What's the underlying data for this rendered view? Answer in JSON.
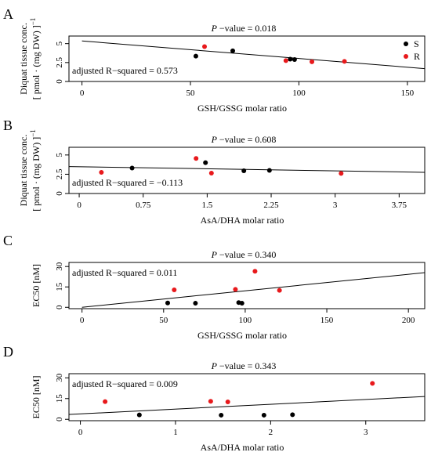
{
  "chart_data": [
    {
      "type": "scatter",
      "panel": "A",
      "pvalue_text": "−value = 0.018",
      "pvalue_italic": "P",
      "annotation": "adjusted R−squared = 0.573",
      "xlabel": "GSH/GSSG molar ratio",
      "ylabel_line1": "Diquat tissue conc.",
      "ylabel_line2": "[ pmol · (mg DW) ]",
      "ylabel_exp": "−1",
      "xlim": [
        -6,
        158
      ],
      "ylim": [
        0,
        6
      ],
      "xticks": [
        0,
        50,
        100,
        150
      ],
      "xtick_labels": [
        "0",
        "50",
        "100",
        "150"
      ],
      "yticks": [
        0,
        2.5,
        5
      ],
      "ytick_labels": [
        "0",
        "2.5",
        "5"
      ],
      "legend": [
        {
          "label": "S",
          "color": "#000000"
        },
        {
          "label": "R",
          "color": "#e8191c"
        }
      ],
      "regression": {
        "x0": 0,
        "y0": 5.35,
        "x1": 158,
        "y1": 1.7
      },
      "series": [
        {
          "name": "S",
          "color": "#000000",
          "points": [
            [
              52.5,
              3.35
            ],
            [
              69.5,
              4.05
            ],
            [
              96,
              2.95
            ],
            [
              98,
              2.9
            ]
          ]
        },
        {
          "name": "R",
          "color": "#e8191c",
          "points": [
            [
              56.5,
              4.6
            ],
            [
              94,
              2.75
            ],
            [
              106,
              2.6
            ],
            [
              121,
              2.65
            ]
          ]
        }
      ]
    },
    {
      "type": "scatter",
      "panel": "B",
      "pvalue_text": "−value = 0.608",
      "pvalue_italic": "P",
      "annotation": "adjusted R−squared = −0.113",
      "xlabel": "AsA/DHA molar ratio",
      "ylabel_line1": "Diquat tissue conc.",
      "ylabel_line2": "[ pmol · (mg DW) ]",
      "ylabel_exp": "−1",
      "xlim": [
        -0.12,
        4.05
      ],
      "ylim": [
        0,
        6
      ],
      "xticks": [
        0,
        0.75,
        1.5,
        2.25,
        3,
        3.75
      ],
      "xtick_labels": [
        "0",
        "0.75",
        "1.5",
        "2.25",
        "3",
        "3.75"
      ],
      "yticks": [
        0,
        2.5,
        5
      ],
      "ytick_labels": [
        "0",
        "2.5",
        "5"
      ],
      "regression": {
        "x0": -0.12,
        "y0": 3.5,
        "x1": 4.05,
        "y1": 2.75
      },
      "series": [
        {
          "name": "S",
          "color": "#000000",
          "points": [
            [
              0.62,
              3.3
            ],
            [
              1.48,
              4.0
            ],
            [
              1.93,
              2.95
            ],
            [
              2.23,
              3.0
            ]
          ]
        },
        {
          "name": "R",
          "color": "#e8191c",
          "points": [
            [
              0.26,
              2.75
            ],
            [
              1.37,
              4.55
            ],
            [
              1.55,
              2.65
            ],
            [
              3.07,
              2.6
            ]
          ]
        }
      ]
    },
    {
      "type": "scatter",
      "panel": "C",
      "pvalue_text": "−value = 0.340",
      "pvalue_italic": "P",
      "annotation": "adjusted R−squared = 0.011",
      "xlabel": "GSH/GSSG molar ratio",
      "ylabel_line1": "EC50 [nM]",
      "xlim": [
        -8,
        210
      ],
      "ylim": [
        -1,
        33
      ],
      "xticks": [
        0,
        50,
        100,
        150,
        200
      ],
      "xtick_labels": [
        "0",
        "50",
        "100",
        "150",
        "200"
      ],
      "yticks": [
        0,
        15,
        30
      ],
      "ytick_labels": [
        "0",
        "15",
        "30"
      ],
      "regression": {
        "x0": 0,
        "y0": 0,
        "x1": 210,
        "y1": 25.5
      },
      "series": [
        {
          "name": "S",
          "color": "#000000",
          "points": [
            [
              52.5,
              3.2
            ],
            [
              69.5,
              3.0
            ],
            [
              96,
              3.5
            ],
            [
              98,
              3.0
            ]
          ]
        },
        {
          "name": "R",
          "color": "#e8191c",
          "points": [
            [
              56.5,
              12.8
            ],
            [
              94,
              13.2
            ],
            [
              106,
              26.5
            ],
            [
              121,
              12.5
            ]
          ]
        }
      ]
    },
    {
      "type": "scatter",
      "panel": "D",
      "pvalue_text": "−value = 0.343",
      "pvalue_italic": "P",
      "annotation": "adjusted R−squared = 0.009",
      "xlabel": "AsA/DHA molar ratio",
      "ylabel_line1": "EC50 [nM]",
      "xlim": [
        -0.12,
        3.62
      ],
      "ylim": [
        -1,
        33
      ],
      "xticks": [
        0,
        1,
        2,
        3
      ],
      "xtick_labels": [
        "0",
        "1",
        "2",
        "3"
      ],
      "yticks": [
        0,
        15,
        30
      ],
      "ytick_labels": [
        "0",
        "15",
        "30"
      ],
      "regression": {
        "x0": -0.12,
        "y0": 3.5,
        "x1": 3.62,
        "y1": 16.5
      },
      "series": [
        {
          "name": "S",
          "color": "#000000",
          "points": [
            [
              0.62,
              3.2
            ],
            [
              1.48,
              3.0
            ],
            [
              1.93,
              3.0
            ],
            [
              2.23,
              3.3
            ]
          ]
        },
        {
          "name": "R",
          "color": "#e8191c",
          "points": [
            [
              0.26,
              12.8
            ],
            [
              1.37,
              13.0
            ],
            [
              1.55,
              12.6
            ],
            [
              3.07,
              26.0
            ]
          ]
        }
      ]
    }
  ]
}
